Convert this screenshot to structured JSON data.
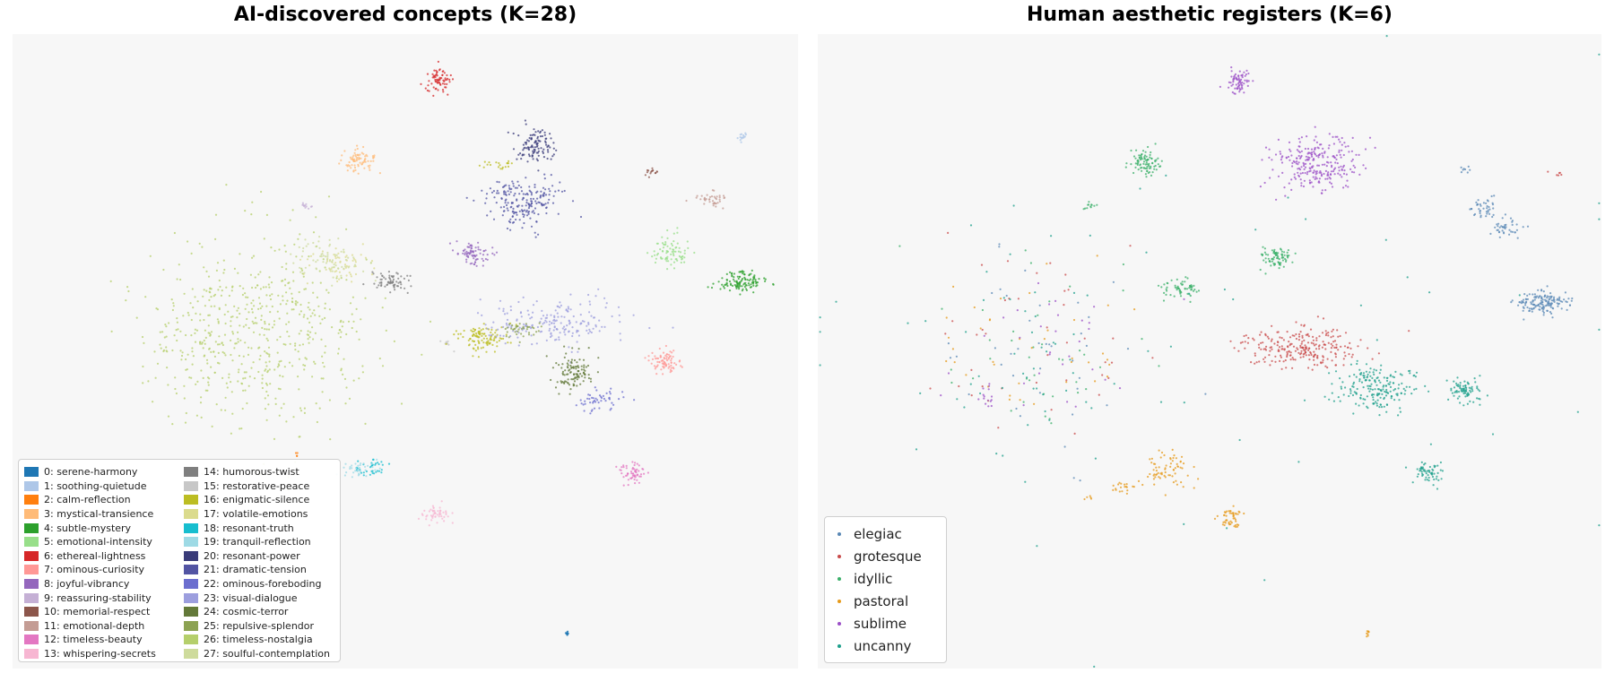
{
  "left_title": "AI-discovered concepts (K=28)",
  "right_title": "Human aesthetic registers (K=6)",
  "chart_data": [
    {
      "type": "scatter",
      "title": "AI-discovered concepts (K=28)",
      "xlabel": "",
      "ylabel": "",
      "axes_visible": false,
      "grid": false,
      "legend_position": "lower-left",
      "legend_columns": 2,
      "xlim": [
        0,
        100
      ],
      "ylim": [
        0,
        100
      ],
      "series": [
        {
          "name": "0: serene-harmony",
          "color": "#1f77b4",
          "clusters": [
            {
              "cx": 70.6,
              "cy": 5.4,
              "sx": 0.12,
              "sy": 0.3,
              "n": 10
            }
          ]
        },
        {
          "name": "1: soothing-quietude",
          "color": "#aec7e8",
          "clusters": [
            {
              "cx": 92.8,
              "cy": 83.6,
              "sx": 0.5,
              "sy": 0.4,
              "n": 15
            }
          ]
        },
        {
          "name": "2: calm-reflection",
          "color": "#ff7f0e",
          "clusters": [
            {
              "cx": 36.3,
              "cy": 33.5,
              "sx": 0.3,
              "sy": 0.25,
              "n": 4
            }
          ]
        },
        {
          "name": "3: mystical-transience",
          "color": "#ffbb78",
          "clusters": [
            {
              "cx": 43.9,
              "cy": 80.0,
              "sx": 1.0,
              "sy": 1.0,
              "n": 80
            }
          ]
        },
        {
          "name": "4: subtle-mystery",
          "color": "#2ca02c",
          "clusters": [
            {
              "cx": 92.7,
              "cy": 61.0,
              "sx": 1.6,
              "sy": 0.8,
              "n": 120
            }
          ]
        },
        {
          "name": "5: emotional-intensity",
          "color": "#98df8a",
          "clusters": [
            {
              "cx": 83.6,
              "cy": 65.8,
              "sx": 1.2,
              "sy": 1.2,
              "n": 80
            }
          ]
        },
        {
          "name": "6: ethereal-lightness",
          "color": "#d62728",
          "clusters": [
            {
              "cx": 54.3,
              "cy": 92.7,
              "sx": 0.8,
              "sy": 1.0,
              "n": 70
            }
          ]
        },
        {
          "name": "7: ominous-curiosity",
          "color": "#ff9896",
          "clusters": [
            {
              "cx": 83.0,
              "cy": 48.3,
              "sx": 1.0,
              "sy": 1.0,
              "n": 80
            }
          ]
        },
        {
          "name": "8: joyful-vibrancy",
          "color": "#9467bd",
          "clusters": [
            {
              "cx": 58.8,
              "cy": 65.3,
              "sx": 1.0,
              "sy": 1.0,
              "n": 80
            }
          ]
        },
        {
          "name": "9: reassuring-stability",
          "color": "#c5b0d5",
          "clusters": [
            {
              "cx": 37.3,
              "cy": 72.8,
              "sx": 0.4,
              "sy": 0.4,
              "n": 12
            }
          ]
        },
        {
          "name": "10: memorial-respect",
          "color": "#8c564b",
          "clusters": [
            {
              "cx": 81.4,
              "cy": 78.2,
              "sx": 0.5,
              "sy": 0.4,
              "n": 15
            }
          ]
        },
        {
          "name": "11: emotional-depth",
          "color": "#c49c94",
          "clusters": [
            {
              "cx": 88.8,
              "cy": 74.0,
              "sx": 1.0,
              "sy": 0.6,
              "n": 40
            }
          ]
        },
        {
          "name": "12: timeless-beauty",
          "color": "#e377c2",
          "clusters": [
            {
              "cx": 78.9,
              "cy": 30.7,
              "sx": 0.9,
              "sy": 0.8,
              "n": 60
            }
          ]
        },
        {
          "name": "13: whispering-secrets",
          "color": "#f7b6d2",
          "clusters": [
            {
              "cx": 53.9,
              "cy": 24.3,
              "sx": 0.9,
              "sy": 0.8,
              "n": 50
            }
          ]
        },
        {
          "name": "14: humorous-twist",
          "color": "#7f7f7f",
          "clusters": [
            {
              "cx": 48.5,
              "cy": 61.0,
              "sx": 1.2,
              "sy": 0.8,
              "n": 70
            }
          ]
        },
        {
          "name": "15: restorative-peace",
          "color": "#c7c7c7",
          "clusters": [
            {
              "cx": 55.2,
              "cy": 51.5,
              "sx": 0.5,
              "sy": 0.5,
              "n": 8
            }
          ]
        },
        {
          "name": "16: enigmatic-silence",
          "color": "#bcbd22",
          "clusters": [
            {
              "cx": 59.8,
              "cy": 52.2,
              "sx": 1.6,
              "sy": 1.1,
              "n": 110
            },
            {
              "cx": 61.5,
              "cy": 79.4,
              "sx": 1.2,
              "sy": 0.5,
              "n": 20
            }
          ]
        },
        {
          "name": "17: volatile-emotions",
          "color": "#dbdb8d",
          "clusters": [
            {
              "cx": 41.5,
              "cy": 63.8,
              "sx": 2.5,
              "sy": 1.6,
              "n": 60
            }
          ]
        },
        {
          "name": "18: resonant-truth",
          "color": "#17becf",
          "clusters": [
            {
              "cx": 45.2,
              "cy": 31.5,
              "sx": 1.2,
              "sy": 0.8,
              "n": 35
            }
          ]
        },
        {
          "name": "19: tranquil-reflection",
          "color": "#9edae5",
          "clusters": [
            {
              "cx": 43.8,
              "cy": 31.6,
              "sx": 1.2,
              "sy": 0.8,
              "n": 35
            }
          ]
        },
        {
          "name": "20: resonant-power",
          "color": "#393b79",
          "clusters": [
            {
              "cx": 66.6,
              "cy": 82.4,
              "sx": 1.2,
              "sy": 1.5,
              "n": 110
            }
          ]
        },
        {
          "name": "21: dramatic-tension",
          "color": "#5254a3",
          "clusters": [
            {
              "cx": 65.1,
              "cy": 73.8,
              "sx": 2.5,
              "sy": 1.8,
              "n": 200
            }
          ]
        },
        {
          "name": "22: ominous-foreboding",
          "color": "#6b6ecf",
          "clusters": [
            {
              "cx": 75.3,
              "cy": 42.2,
              "sx": 1.6,
              "sy": 1.0,
              "n": 50
            }
          ]
        },
        {
          "name": "23: visual-dialogue",
          "color": "#9c9ede",
          "clusters": [
            {
              "cx": 68.5,
              "cy": 54.5,
              "sx": 4.5,
              "sy": 1.8,
              "n": 200
            }
          ]
        },
        {
          "name": "24: cosmic-terror",
          "color": "#637939",
          "clusters": [
            {
              "cx": 71.3,
              "cy": 46.8,
              "sx": 1.2,
              "sy": 1.5,
              "n": 110
            }
          ]
        },
        {
          "name": "25: repulsive-splendor",
          "color": "#8ca252",
          "clusters": [
            {
              "cx": 65.0,
              "cy": 53.2,
              "sx": 1.5,
              "sy": 0.8,
              "n": 40
            }
          ]
        },
        {
          "name": "26: timeless-nostalgia",
          "color": "#b5cf6b",
          "clusters": [
            {
              "cx": 30.5,
              "cy": 53.0,
              "sx": 7.0,
              "sy": 7.5,
              "n": 600
            }
          ]
        },
        {
          "name": "27: soulful-contemplation",
          "color": "#cedb9c",
          "clusters": [
            {
              "cx": 39.5,
              "cy": 64.5,
              "sx": 2.5,
              "sy": 1.5,
              "n": 70
            }
          ]
        }
      ]
    },
    {
      "type": "scatter",
      "title": "Human aesthetic registers (K=6)",
      "xlabel": "",
      "ylabel": "",
      "axes_visible": false,
      "grid": false,
      "legend_position": "lower-left",
      "legend_columns": 1,
      "xlim": [
        0,
        100
      ],
      "ylim": [
        0,
        100
      ],
      "series": [
        {
          "name": "elegiac",
          "color": "#5a88b5",
          "clusters": [
            {
              "cx": 92.4,
              "cy": 57.6,
              "sx": 1.6,
              "sy": 0.8,
              "n": 150
            },
            {
              "cx": 87.8,
              "cy": 69.4,
              "sx": 1.0,
              "sy": 0.8,
              "n": 40
            },
            {
              "cx": 84.7,
              "cy": 72.4,
              "sx": 1.0,
              "sy": 0.8,
              "n": 40
            },
            {
              "cx": 82.6,
              "cy": 78.7,
              "sx": 0.5,
              "sy": 0.3,
              "n": 8
            },
            {
              "cx": 28.0,
              "cy": 51.0,
              "sx": 7.0,
              "sy": 7.5,
              "n": 40
            }
          ]
        },
        {
          "name": "grotesque",
          "color": "#c94b4b",
          "clusters": [
            {
              "cx": 62.0,
              "cy": 50.7,
              "sx": 4.0,
              "sy": 1.6,
              "n": 250
            },
            {
              "cx": 28.0,
              "cy": 51.0,
              "sx": 7.0,
              "sy": 7.5,
              "n": 40
            },
            {
              "cx": 93.8,
              "cy": 78.1,
              "sx": 0.5,
              "sy": 0.3,
              "n": 6
            }
          ]
        },
        {
          "name": "idyllic",
          "color": "#3bb06a",
          "clusters": [
            {
              "cx": 41.8,
              "cy": 79.8,
              "sx": 1.0,
              "sy": 1.0,
              "n": 90
            },
            {
              "cx": 58.6,
              "cy": 65.0,
              "sx": 1.0,
              "sy": 0.8,
              "n": 80
            },
            {
              "cx": 46.3,
              "cy": 59.8,
              "sx": 1.2,
              "sy": 0.8,
              "n": 60
            },
            {
              "cx": 34.6,
              "cy": 72.8,
              "sx": 0.4,
              "sy": 0.3,
              "n": 12
            },
            {
              "cx": 28.0,
              "cy": 51.0,
              "sx": 7.0,
              "sy": 7.5,
              "n": 40
            }
          ]
        },
        {
          "name": "pastoral",
          "color": "#e69a1a",
          "clusters": [
            {
              "cx": 44.7,
              "cy": 31.2,
              "sx": 1.5,
              "sy": 1.4,
              "n": 70
            },
            {
              "cx": 52.6,
              "cy": 23.8,
              "sx": 0.9,
              "sy": 0.8,
              "n": 50
            },
            {
              "cx": 39.0,
              "cy": 28.5,
              "sx": 1.0,
              "sy": 0.5,
              "n": 20
            },
            {
              "cx": 70.2,
              "cy": 5.5,
              "sx": 0.1,
              "sy": 0.3,
              "n": 8
            },
            {
              "cx": 34.5,
              "cy": 27.0,
              "sx": 0.4,
              "sy": 0.3,
              "n": 5
            },
            {
              "cx": 28.0,
              "cy": 51.0,
              "sx": 7.0,
              "sy": 7.5,
              "n": 40
            }
          ]
        },
        {
          "name": "sublime",
          "color": "#9b4fc7",
          "clusters": [
            {
              "cx": 63.6,
              "cy": 79.5,
              "sx": 2.5,
              "sy": 2.3,
              "n": 260
            },
            {
              "cx": 53.7,
              "cy": 92.6,
              "sx": 0.8,
              "sy": 1.0,
              "n": 70
            },
            {
              "cx": 22.0,
              "cy": 43.0,
              "sx": 1.0,
              "sy": 1.5,
              "n": 15
            },
            {
              "cx": 28.0,
              "cy": 51.0,
              "sx": 7.0,
              "sy": 7.5,
              "n": 30
            }
          ]
        },
        {
          "name": "uncanny",
          "color": "#1fa08c",
          "clusters": [
            {
              "cx": 71.0,
              "cy": 44.5,
              "sx": 2.5,
              "sy": 2.0,
              "n": 200
            },
            {
              "cx": 82.6,
              "cy": 43.6,
              "sx": 1.0,
              "sy": 1.0,
              "n": 80
            },
            {
              "cx": 78.0,
              "cy": 31.0,
              "sx": 1.0,
              "sy": 0.8,
              "n": 60
            },
            {
              "cx": 28.0,
              "cy": 51.0,
              "sx": 7.0,
              "sy": 7.5,
              "n": 40
            },
            {
              "cx": 50.0,
              "cy": 50.0,
              "sx": 35.0,
              "sy": 22.0,
              "n": 50
            }
          ]
        }
      ]
    }
  ]
}
